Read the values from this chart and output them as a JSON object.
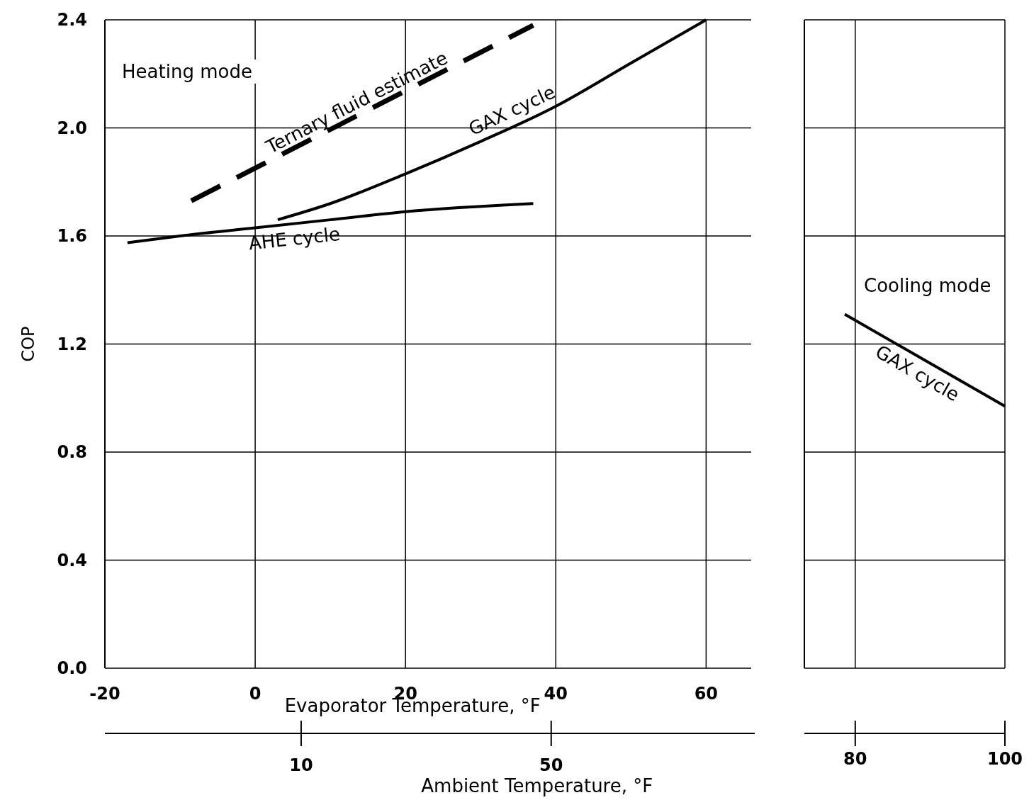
{
  "chart_data": [
    {
      "type": "line",
      "xlabel": "Evaporator Temperature, °F",
      "ylabel": "COP",
      "x2label": "Ambient Temperature, °F",
      "xlim": [
        -20,
        66
      ],
      "xticks": [
        -20,
        0,
        20,
        40,
        60
      ],
      "x2lim": [
        -21.4,
        82
      ],
      "x2ticks": [
        10,
        50
      ],
      "ylim": [
        0,
        2.4
      ],
      "yticks": [
        {
          "value": 0,
          "label": "0.0"
        },
        0.4,
        0.8,
        1.2,
        1.6,
        {
          "value": 2,
          "label": "2.0"
        },
        2.4
      ],
      "grid": true,
      "annotations": [
        "Heating mode"
      ],
      "series": [
        {
          "name": "AHE cycle",
          "color": "#000000",
          "x": [
            -17,
            -10,
            0,
            10,
            20,
            37
          ],
          "values": [
            1.575,
            1.6,
            1.63,
            1.66,
            1.69,
            1.72
          ]
        },
        {
          "name": "GAX cycle",
          "color": "#000000",
          "x": [
            3,
            10,
            20,
            30,
            40,
            50,
            60
          ],
          "values": [
            1.66,
            1.72,
            1.83,
            1.95,
            2.08,
            2.24,
            2.4
          ]
        },
        {
          "name": "Ternary fluid estimate",
          "color": "#000000",
          "line_style": "dashed",
          "x": [
            -8.5,
            37
          ],
          "values": [
            1.73,
            2.38
          ]
        }
      ]
    },
    {
      "type": "line",
      "xlim": [
        73.2,
        100
      ],
      "xticks": [
        80,
        100
      ],
      "ylim": [
        0,
        2.4
      ],
      "yticks": [
        0,
        0.4,
        0.8,
        1.2,
        1.6,
        2,
        2.4
      ],
      "grid": true,
      "tick_labels": "x",
      "annotations": [
        "Cooling mode"
      ],
      "series": [
        {
          "name": "GAX cycle",
          "color": "#000000",
          "x": [
            78.6,
            100
          ],
          "values": [
            1.31,
            0.97
          ]
        }
      ]
    }
  ]
}
